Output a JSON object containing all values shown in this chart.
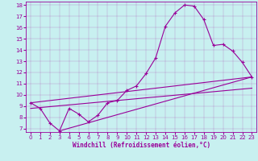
{
  "xlabel": "Windchill (Refroidissement éolien,°C)",
  "ylabel": "",
  "bg_color": "#c8f0f0",
  "line_color": "#990099",
  "grid_color": "#aadddd",
  "xlim": [
    -0.5,
    23.5
  ],
  "ylim": [
    6.7,
    18.3
  ],
  "xticks": [
    0,
    1,
    2,
    3,
    4,
    5,
    6,
    7,
    8,
    9,
    10,
    11,
    12,
    13,
    14,
    15,
    16,
    17,
    18,
    19,
    20,
    21,
    22,
    23
  ],
  "yticks": [
    7,
    8,
    9,
    10,
    11,
    12,
    13,
    14,
    15,
    16,
    17,
    18
  ],
  "curve1_x": [
    0,
    1,
    2,
    3,
    4,
    5,
    6,
    7,
    8,
    9,
    10,
    11,
    12,
    13,
    14,
    15,
    16,
    17,
    18,
    19,
    20,
    21,
    22,
    23
  ],
  "curve1_y": [
    9.3,
    8.8,
    7.5,
    6.8,
    8.8,
    8.3,
    7.6,
    8.2,
    9.3,
    9.5,
    10.4,
    10.8,
    11.9,
    13.3,
    16.1,
    17.3,
    18.0,
    17.9,
    16.7,
    14.4,
    14.5,
    13.9,
    12.9,
    11.6
  ],
  "line1_x": [
    0,
    23
  ],
  "line1_y": [
    9.3,
    11.6
  ],
  "line2_x": [
    3,
    23
  ],
  "line2_y": [
    6.8,
    11.6
  ],
  "line3_x": [
    0,
    23
  ],
  "line3_y": [
    8.8,
    10.6
  ],
  "xlabel_fontsize": 5.5,
  "tick_fontsize": 5.0,
  "line_width": 0.8,
  "marker_size": 3.0
}
